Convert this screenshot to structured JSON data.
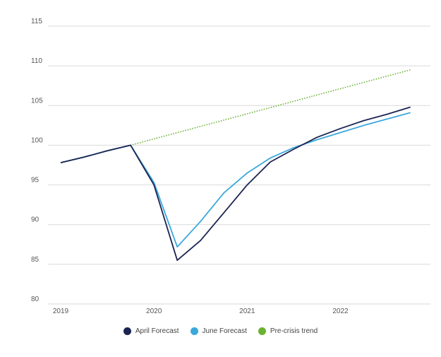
{
  "chart_data": {
    "type": "line",
    "ylim": [
      80,
      115
    ],
    "y_ticks": [
      "115",
      "110",
      "105",
      "100",
      "95",
      "90",
      "85",
      "80"
    ],
    "x_range": [
      2019.0,
      2022.95
    ],
    "x_ticks": [
      {
        "label": "2019",
        "value": 2019.0
      },
      {
        "label": "2020",
        "value": 2020.0
      },
      {
        "label": "2021",
        "value": 2021.0
      },
      {
        "label": "2022",
        "value": 2022.0
      }
    ],
    "grid": "horizontal",
    "legend_position": "bottom-center",
    "series": [
      {
        "name": "April Forecast",
        "color": "#1b2452",
        "style": "solid",
        "points": [
          [
            2019.0,
            97.8
          ],
          [
            2019.25,
            98.5
          ],
          [
            2019.5,
            99.3
          ],
          [
            2019.75,
            100.0
          ],
          [
            2020.0,
            95.0
          ],
          [
            2020.25,
            85.5
          ],
          [
            2020.5,
            88.0
          ],
          [
            2020.75,
            91.5
          ],
          [
            2021.0,
            95.0
          ],
          [
            2021.25,
            97.9
          ],
          [
            2021.5,
            99.5
          ],
          [
            2021.75,
            101.0
          ],
          [
            2022.0,
            102.1
          ],
          [
            2022.25,
            103.1
          ],
          [
            2022.5,
            103.9
          ],
          [
            2022.75,
            104.8
          ]
        ]
      },
      {
        "name": "June Forecast",
        "color": "#3aa8dc",
        "style": "solid",
        "points": [
          [
            2019.0,
            97.8
          ],
          [
            2019.25,
            98.5
          ],
          [
            2019.5,
            99.3
          ],
          [
            2019.75,
            100.0
          ],
          [
            2020.0,
            95.3
          ],
          [
            2020.25,
            87.2
          ],
          [
            2020.5,
            90.4
          ],
          [
            2020.75,
            94.0
          ],
          [
            2021.0,
            96.5
          ],
          [
            2021.25,
            98.4
          ],
          [
            2021.5,
            99.7
          ],
          [
            2021.75,
            100.7
          ],
          [
            2022.0,
            101.6
          ],
          [
            2022.25,
            102.5
          ],
          [
            2022.5,
            103.3
          ],
          [
            2022.75,
            104.1
          ]
        ]
      },
      {
        "name": "Pre-crisis trend",
        "color": "#6ab230",
        "style": "dotted",
        "points": [
          [
            2019.0,
            97.8
          ],
          [
            2019.75,
            100.0
          ],
          [
            2022.75,
            109.5
          ]
        ]
      }
    ]
  }
}
